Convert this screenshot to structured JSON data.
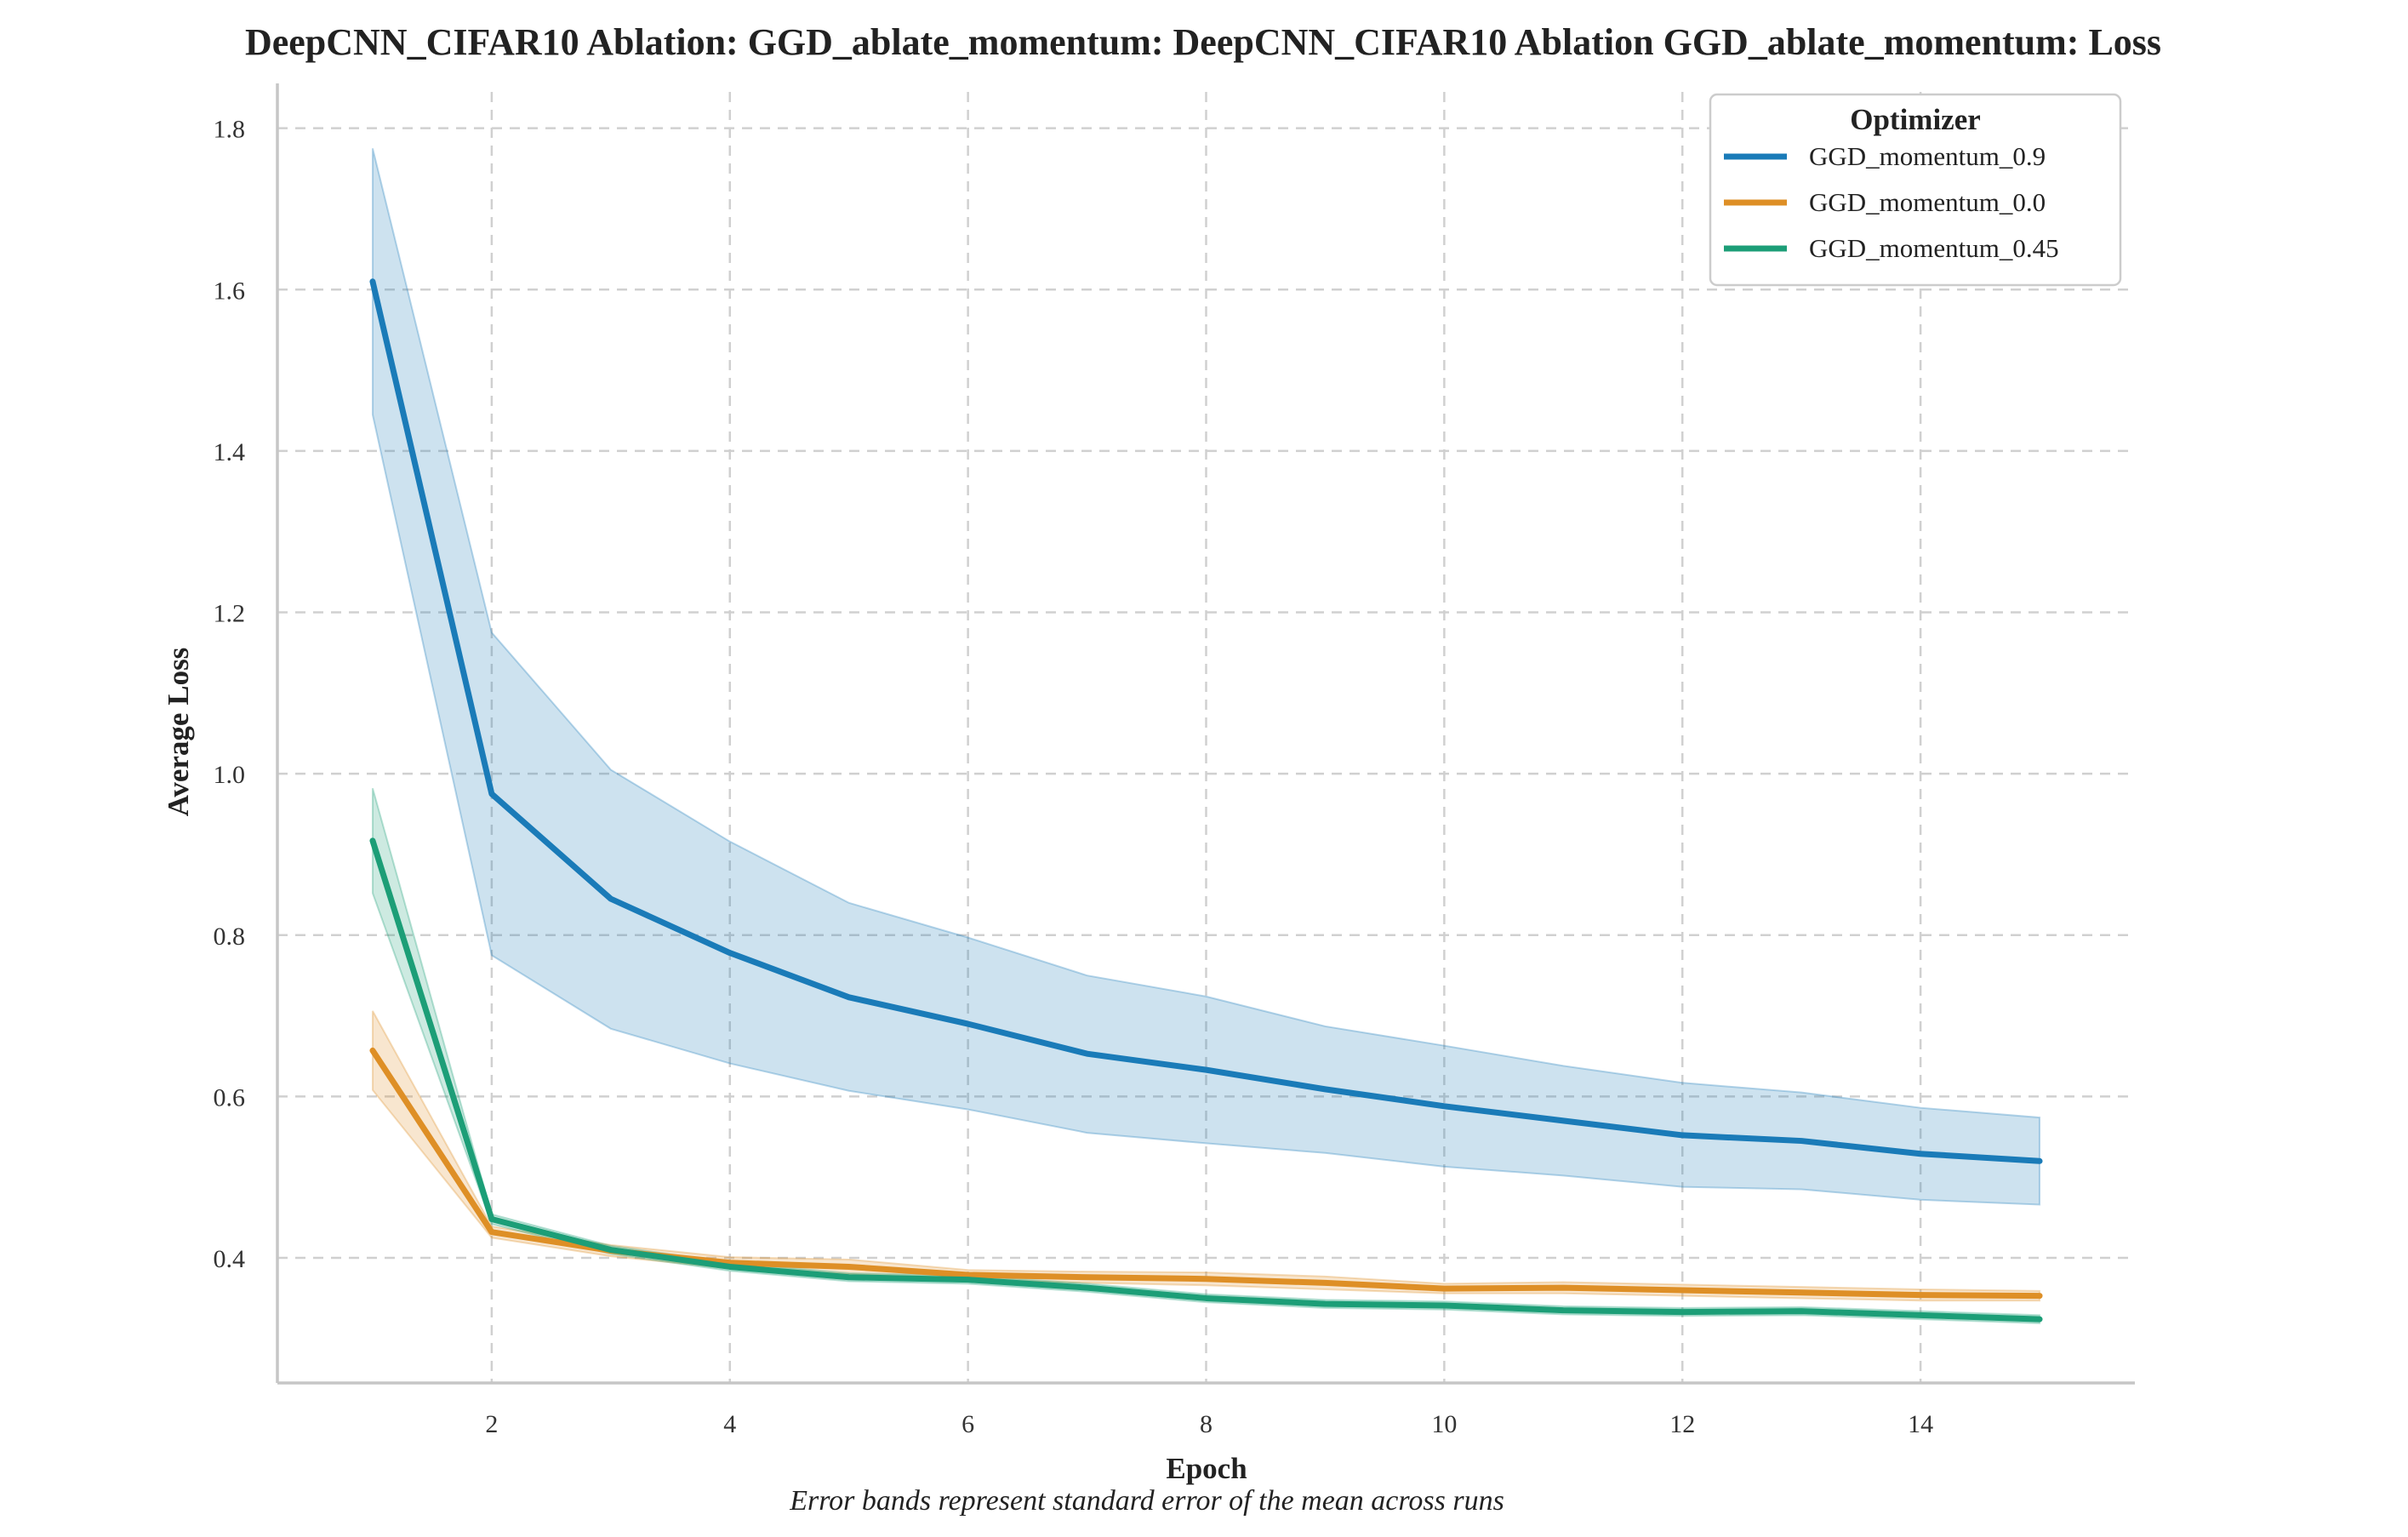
{
  "chart_data": {
    "type": "line",
    "title": "DeepCNN_CIFAR10 Ablation: GGD_ablate_momentum: DeepCNN_CIFAR10 Ablation GGD_ablate_momentum: Loss",
    "xlabel": "Epoch",
    "ylabel": "Average Loss",
    "caption": "Error bands represent standard error of the mean across runs",
    "xlim": [
      0.2,
      15.8
    ],
    "ylim": [
      0.245,
      1.845
    ],
    "xticks": [
      2,
      4,
      6,
      8,
      10,
      12,
      14
    ],
    "yticks": [
      0.4,
      0.6,
      0.8,
      1.0,
      1.2,
      1.4,
      1.6,
      1.8
    ],
    "ytick_labels": [
      "0.4",
      "0.6",
      "0.8",
      "1.0",
      "1.2",
      "1.4",
      "1.6",
      "1.8"
    ],
    "grid": true,
    "legend_title": "Optimizer",
    "legend_position": "top-right",
    "x": [
      1,
      2,
      3,
      4,
      5,
      6,
      7,
      8,
      9,
      10,
      11,
      12,
      13,
      14,
      15
    ],
    "series": [
      {
        "name": "GGD_momentum_0.9",
        "color": "#1a7bb8",
        "values": [
          1.61,
          0.975,
          0.845,
          0.778,
          0.723,
          0.69,
          0.653,
          0.633,
          0.609,
          0.588,
          0.57,
          0.552,
          0.545,
          0.529,
          0.52
        ],
        "lower": [
          1.445,
          0.775,
          0.684,
          0.641,
          0.607,
          0.584,
          0.555,
          0.542,
          0.53,
          0.513,
          0.502,
          0.488,
          0.485,
          0.472,
          0.466
        ],
        "upper": [
          1.775,
          1.175,
          1.005,
          0.916,
          0.84,
          0.797,
          0.75,
          0.724,
          0.687,
          0.663,
          0.638,
          0.617,
          0.605,
          0.586,
          0.574
        ]
      },
      {
        "name": "GGD_momentum_0.0",
        "color": "#de8f26",
        "values": [
          0.657,
          0.432,
          0.409,
          0.394,
          0.389,
          0.379,
          0.376,
          0.374,
          0.369,
          0.362,
          0.363,
          0.36,
          0.357,
          0.354,
          0.353
        ],
        "lower": [
          0.608,
          0.425,
          0.402,
          0.387,
          0.38,
          0.373,
          0.369,
          0.366,
          0.361,
          0.356,
          0.356,
          0.353,
          0.35,
          0.347,
          0.347
        ],
        "upper": [
          0.706,
          0.439,
          0.416,
          0.401,
          0.398,
          0.385,
          0.383,
          0.382,
          0.377,
          0.368,
          0.37,
          0.367,
          0.364,
          0.361,
          0.359
        ]
      },
      {
        "name": "GGD_momentum_0.45",
        "color": "#1c9e77",
        "values": [
          0.917,
          0.448,
          0.41,
          0.389,
          0.376,
          0.373,
          0.363,
          0.35,
          0.343,
          0.341,
          0.335,
          0.333,
          0.334,
          0.329,
          0.324
        ],
        "lower": [
          0.852,
          0.442,
          0.405,
          0.384,
          0.371,
          0.368,
          0.358,
          0.345,
          0.338,
          0.336,
          0.33,
          0.328,
          0.329,
          0.324,
          0.319
        ],
        "upper": [
          0.982,
          0.454,
          0.415,
          0.394,
          0.381,
          0.378,
          0.368,
          0.355,
          0.348,
          0.346,
          0.34,
          0.338,
          0.339,
          0.334,
          0.329
        ]
      }
    ]
  }
}
